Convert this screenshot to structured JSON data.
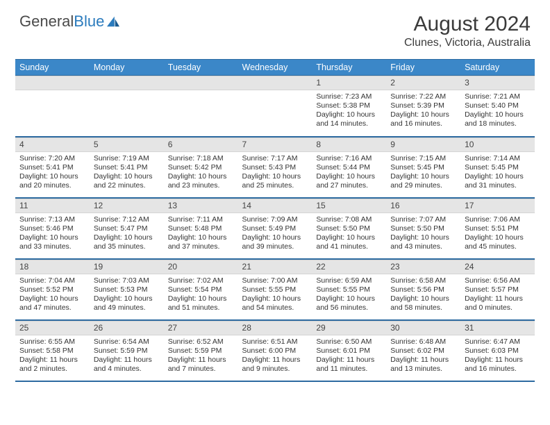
{
  "brand": {
    "part1": "General",
    "part2": "Blue"
  },
  "title": "August 2024",
  "location": "Clunes, Victoria, Australia",
  "style": {
    "header_bg": "#3b87c8",
    "header_text": "#ffffff",
    "daynum_bg": "#e5e5e5",
    "border_color": "#2c6aa0",
    "body_text": "#333333",
    "font_family": "Arial",
    "title_fontsize": 30,
    "location_fontsize": 16,
    "dayheader_fontsize": 12.5,
    "cell_fontsize": 10.5
  },
  "weekdays": [
    "Sunday",
    "Monday",
    "Tuesday",
    "Wednesday",
    "Thursday",
    "Friday",
    "Saturday"
  ],
  "weeks": [
    [
      {
        "blank": true
      },
      {
        "blank": true
      },
      {
        "blank": true
      },
      {
        "blank": true
      },
      {
        "n": "1",
        "sunrise": "Sunrise: 7:23 AM",
        "sunset": "Sunset: 5:38 PM",
        "day1": "Daylight: 10 hours",
        "day2": "and 14 minutes."
      },
      {
        "n": "2",
        "sunrise": "Sunrise: 7:22 AM",
        "sunset": "Sunset: 5:39 PM",
        "day1": "Daylight: 10 hours",
        "day2": "and 16 minutes."
      },
      {
        "n": "3",
        "sunrise": "Sunrise: 7:21 AM",
        "sunset": "Sunset: 5:40 PM",
        "day1": "Daylight: 10 hours",
        "day2": "and 18 minutes."
      }
    ],
    [
      {
        "n": "4",
        "sunrise": "Sunrise: 7:20 AM",
        "sunset": "Sunset: 5:41 PM",
        "day1": "Daylight: 10 hours",
        "day2": "and 20 minutes."
      },
      {
        "n": "5",
        "sunrise": "Sunrise: 7:19 AM",
        "sunset": "Sunset: 5:41 PM",
        "day1": "Daylight: 10 hours",
        "day2": "and 22 minutes."
      },
      {
        "n": "6",
        "sunrise": "Sunrise: 7:18 AM",
        "sunset": "Sunset: 5:42 PM",
        "day1": "Daylight: 10 hours",
        "day2": "and 23 minutes."
      },
      {
        "n": "7",
        "sunrise": "Sunrise: 7:17 AM",
        "sunset": "Sunset: 5:43 PM",
        "day1": "Daylight: 10 hours",
        "day2": "and 25 minutes."
      },
      {
        "n": "8",
        "sunrise": "Sunrise: 7:16 AM",
        "sunset": "Sunset: 5:44 PM",
        "day1": "Daylight: 10 hours",
        "day2": "and 27 minutes."
      },
      {
        "n": "9",
        "sunrise": "Sunrise: 7:15 AM",
        "sunset": "Sunset: 5:45 PM",
        "day1": "Daylight: 10 hours",
        "day2": "and 29 minutes."
      },
      {
        "n": "10",
        "sunrise": "Sunrise: 7:14 AM",
        "sunset": "Sunset: 5:45 PM",
        "day1": "Daylight: 10 hours",
        "day2": "and 31 minutes."
      }
    ],
    [
      {
        "n": "11",
        "sunrise": "Sunrise: 7:13 AM",
        "sunset": "Sunset: 5:46 PM",
        "day1": "Daylight: 10 hours",
        "day2": "and 33 minutes."
      },
      {
        "n": "12",
        "sunrise": "Sunrise: 7:12 AM",
        "sunset": "Sunset: 5:47 PM",
        "day1": "Daylight: 10 hours",
        "day2": "and 35 minutes."
      },
      {
        "n": "13",
        "sunrise": "Sunrise: 7:11 AM",
        "sunset": "Sunset: 5:48 PM",
        "day1": "Daylight: 10 hours",
        "day2": "and 37 minutes."
      },
      {
        "n": "14",
        "sunrise": "Sunrise: 7:09 AM",
        "sunset": "Sunset: 5:49 PM",
        "day1": "Daylight: 10 hours",
        "day2": "and 39 minutes."
      },
      {
        "n": "15",
        "sunrise": "Sunrise: 7:08 AM",
        "sunset": "Sunset: 5:50 PM",
        "day1": "Daylight: 10 hours",
        "day2": "and 41 minutes."
      },
      {
        "n": "16",
        "sunrise": "Sunrise: 7:07 AM",
        "sunset": "Sunset: 5:50 PM",
        "day1": "Daylight: 10 hours",
        "day2": "and 43 minutes."
      },
      {
        "n": "17",
        "sunrise": "Sunrise: 7:06 AM",
        "sunset": "Sunset: 5:51 PM",
        "day1": "Daylight: 10 hours",
        "day2": "and 45 minutes."
      }
    ],
    [
      {
        "n": "18",
        "sunrise": "Sunrise: 7:04 AM",
        "sunset": "Sunset: 5:52 PM",
        "day1": "Daylight: 10 hours",
        "day2": "and 47 minutes."
      },
      {
        "n": "19",
        "sunrise": "Sunrise: 7:03 AM",
        "sunset": "Sunset: 5:53 PM",
        "day1": "Daylight: 10 hours",
        "day2": "and 49 minutes."
      },
      {
        "n": "20",
        "sunrise": "Sunrise: 7:02 AM",
        "sunset": "Sunset: 5:54 PM",
        "day1": "Daylight: 10 hours",
        "day2": "and 51 minutes."
      },
      {
        "n": "21",
        "sunrise": "Sunrise: 7:00 AM",
        "sunset": "Sunset: 5:55 PM",
        "day1": "Daylight: 10 hours",
        "day2": "and 54 minutes."
      },
      {
        "n": "22",
        "sunrise": "Sunrise: 6:59 AM",
        "sunset": "Sunset: 5:55 PM",
        "day1": "Daylight: 10 hours",
        "day2": "and 56 minutes."
      },
      {
        "n": "23",
        "sunrise": "Sunrise: 6:58 AM",
        "sunset": "Sunset: 5:56 PM",
        "day1": "Daylight: 10 hours",
        "day2": "and 58 minutes."
      },
      {
        "n": "24",
        "sunrise": "Sunrise: 6:56 AM",
        "sunset": "Sunset: 5:57 PM",
        "day1": "Daylight: 11 hours",
        "day2": "and 0 minutes."
      }
    ],
    [
      {
        "n": "25",
        "sunrise": "Sunrise: 6:55 AM",
        "sunset": "Sunset: 5:58 PM",
        "day1": "Daylight: 11 hours",
        "day2": "and 2 minutes."
      },
      {
        "n": "26",
        "sunrise": "Sunrise: 6:54 AM",
        "sunset": "Sunset: 5:59 PM",
        "day1": "Daylight: 11 hours",
        "day2": "and 4 minutes."
      },
      {
        "n": "27",
        "sunrise": "Sunrise: 6:52 AM",
        "sunset": "Sunset: 5:59 PM",
        "day1": "Daylight: 11 hours",
        "day2": "and 7 minutes."
      },
      {
        "n": "28",
        "sunrise": "Sunrise: 6:51 AM",
        "sunset": "Sunset: 6:00 PM",
        "day1": "Daylight: 11 hours",
        "day2": "and 9 minutes."
      },
      {
        "n": "29",
        "sunrise": "Sunrise: 6:50 AM",
        "sunset": "Sunset: 6:01 PM",
        "day1": "Daylight: 11 hours",
        "day2": "and 11 minutes."
      },
      {
        "n": "30",
        "sunrise": "Sunrise: 6:48 AM",
        "sunset": "Sunset: 6:02 PM",
        "day1": "Daylight: 11 hours",
        "day2": "and 13 minutes."
      },
      {
        "n": "31",
        "sunrise": "Sunrise: 6:47 AM",
        "sunset": "Sunset: 6:03 PM",
        "day1": "Daylight: 11 hours",
        "day2": "and 16 minutes."
      }
    ]
  ]
}
